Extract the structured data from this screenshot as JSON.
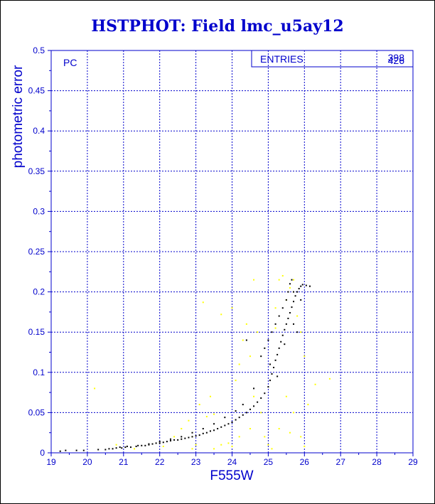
{
  "chart_data": {
    "type": "scatter",
    "title": "HSTPHOT: Field lmc_u5ay12",
    "xlabel": "F555W",
    "ylabel": "photometric error",
    "xlim": [
      19,
      29
    ],
    "ylim": [
      0,
      0.5
    ],
    "x_ticks": [
      "19",
      "20",
      "21",
      "22",
      "23",
      "24",
      "25",
      "26",
      "27",
      "28",
      "29"
    ],
    "y_ticks": [
      "0",
      "0.05",
      "0.1",
      "0.15",
      "0.2",
      "0.25",
      "0.3",
      "0.35",
      "0.4",
      "0.45",
      "0.5"
    ],
    "grid": true,
    "annotation": "PC",
    "stats_box": {
      "label": "ENTRIES",
      "values": [
        "398",
        "426"
      ]
    },
    "colors": {
      "frame": "#0000cc",
      "grid": "#0000cc",
      "text": "#0000cc",
      "series_1": "#000000",
      "series_2": "#ffff00"
    },
    "series": [
      {
        "points": [
          [
            19.25,
            0.002
          ],
          [
            19.4,
            0.003
          ],
          [
            19.7,
            0.003
          ],
          [
            19.9,
            0.003
          ],
          [
            20.3,
            0.004
          ],
          [
            20.5,
            0.004
          ],
          [
            20.6,
            0.005
          ],
          [
            20.7,
            0.005
          ],
          [
            20.8,
            0.006
          ],
          [
            20.95,
            0.006
          ],
          [
            21.05,
            0.007
          ],
          [
            21.2,
            0.007
          ],
          [
            21.35,
            0.008
          ],
          [
            21.5,
            0.009
          ],
          [
            21.6,
            0.009
          ],
          [
            21.7,
            0.01
          ],
          [
            21.8,
            0.011
          ],
          [
            21.9,
            0.012
          ],
          [
            22.0,
            0.012
          ],
          [
            22.1,
            0.013
          ],
          [
            22.2,
            0.014
          ],
          [
            22.3,
            0.015
          ],
          [
            22.4,
            0.016
          ],
          [
            22.5,
            0.016
          ],
          [
            22.6,
            0.017
          ],
          [
            22.7,
            0.018
          ],
          [
            22.8,
            0.019
          ],
          [
            22.9,
            0.02
          ],
          [
            23.0,
            0.021
          ],
          [
            23.1,
            0.022
          ],
          [
            23.2,
            0.024
          ],
          [
            23.3,
            0.025
          ],
          [
            23.4,
            0.027
          ],
          [
            23.5,
            0.028
          ],
          [
            23.6,
            0.03
          ],
          [
            23.7,
            0.032
          ],
          [
            23.8,
            0.034
          ],
          [
            23.9,
            0.036
          ],
          [
            24.0,
            0.038
          ],
          [
            24.1,
            0.041
          ],
          [
            24.2,
            0.044
          ],
          [
            24.3,
            0.047
          ],
          [
            24.4,
            0.05
          ],
          [
            24.5,
            0.054
          ],
          [
            24.6,
            0.058
          ],
          [
            24.7,
            0.063
          ],
          [
            24.8,
            0.068
          ],
          [
            24.9,
            0.074
          ],
          [
            25.0,
            0.082
          ],
          [
            25.05,
            0.09
          ],
          [
            25.1,
            0.098
          ],
          [
            25.15,
            0.106
          ],
          [
            25.2,
            0.115
          ],
          [
            25.25,
            0.122
          ],
          [
            25.3,
            0.13
          ],
          [
            25.35,
            0.138
          ],
          [
            25.4,
            0.146
          ],
          [
            25.45,
            0.153
          ],
          [
            25.5,
            0.16
          ],
          [
            25.55,
            0.167
          ],
          [
            25.6,
            0.174
          ],
          [
            25.65,
            0.181
          ],
          [
            25.7,
            0.188
          ],
          [
            25.75,
            0.195
          ],
          [
            25.8,
            0.2
          ],
          [
            25.85,
            0.204
          ],
          [
            25.9,
            0.207
          ],
          [
            25.95,
            0.209
          ],
          [
            26.05,
            0.208
          ],
          [
            26.15,
            0.207
          ],
          [
            25.6,
            0.21
          ],
          [
            25.7,
            0.2
          ],
          [
            25.5,
            0.19
          ],
          [
            25.4,
            0.18
          ],
          [
            25.3,
            0.17
          ],
          [
            25.2,
            0.16
          ],
          [
            25.1,
            0.15
          ],
          [
            25.0,
            0.14
          ],
          [
            24.9,
            0.13
          ],
          [
            24.8,
            0.12
          ],
          [
            25.7,
            0.16
          ],
          [
            25.8,
            0.15
          ],
          [
            25.9,
            0.19
          ],
          [
            24.6,
            0.08
          ],
          [
            24.3,
            0.06
          ],
          [
            24.1,
            0.052
          ],
          [
            23.8,
            0.044
          ],
          [
            23.5,
            0.036
          ],
          [
            23.2,
            0.03
          ],
          [
            22.9,
            0.025
          ],
          [
            22.6,
            0.02
          ],
          [
            22.3,
            0.017
          ],
          [
            22.0,
            0.014
          ],
          [
            21.7,
            0.011
          ],
          [
            21.4,
            0.009
          ],
          [
            21.1,
            0.008
          ],
          [
            20.9,
            0.007
          ],
          [
            24.4,
            0.14
          ],
          [
            25.05,
            0.11
          ],
          [
            25.25,
            0.095
          ],
          [
            25.45,
            0.135
          ],
          [
            25.55,
            0.2
          ],
          [
            25.65,
            0.215
          ]
        ]
      },
      {
        "points": [
          [
            20.2,
            0.08
          ],
          [
            20.8,
            0.01
          ],
          [
            21.3,
            0.005
          ],
          [
            22.1,
            0.008
          ],
          [
            22.4,
            0.02
          ],
          [
            22.6,
            0.03
          ],
          [
            22.8,
            0.04
          ],
          [
            22.9,
            0.02
          ],
          [
            23.1,
            0.06
          ],
          [
            23.2,
            0.187
          ],
          [
            23.4,
            0.07
          ],
          [
            23.5,
            0.048
          ],
          [
            23.7,
            0.172
          ],
          [
            23.7,
            0.01
          ],
          [
            23.9,
            0.012
          ],
          [
            24.0,
            0.008
          ],
          [
            24.1,
            0.09
          ],
          [
            24.2,
            0.11
          ],
          [
            24.3,
            0.14
          ],
          [
            24.4,
            0.16
          ],
          [
            24.5,
            0.12
          ],
          [
            24.5,
            0.03
          ],
          [
            24.6,
            0.215
          ],
          [
            24.7,
            0.15
          ],
          [
            24.8,
            0.05
          ],
          [
            24.9,
            0.02
          ],
          [
            25.0,
            0.01
          ],
          [
            25.1,
            0.005
          ],
          [
            25.2,
            0.18
          ],
          [
            25.3,
            0.215
          ],
          [
            25.4,
            0.22
          ],
          [
            25.5,
            0.19
          ],
          [
            25.6,
            0.205
          ],
          [
            25.7,
            0.215
          ],
          [
            25.8,
            0.17
          ],
          [
            25.9,
            0.15
          ],
          [
            26.0,
            0.12
          ],
          [
            26.1,
            0.06
          ],
          [
            26.3,
            0.085
          ],
          [
            26.7,
            0.092
          ],
          [
            25.3,
            0.03
          ],
          [
            25.5,
            0.07
          ],
          [
            25.7,
            0.05
          ],
          [
            25.9,
            0.02
          ],
          [
            24.2,
            0.02
          ],
          [
            23.5,
            0.005
          ],
          [
            22.9,
            0.005
          ],
          [
            23.3,
            0.045
          ],
          [
            24.6,
            0.07
          ],
          [
            25.6,
            0.025
          ],
          [
            26.0,
            0.008
          ],
          [
            23.0,
            0.01
          ],
          [
            24.0,
            0.18
          ],
          [
            25.2,
            0.155
          ]
        ]
      }
    ]
  }
}
